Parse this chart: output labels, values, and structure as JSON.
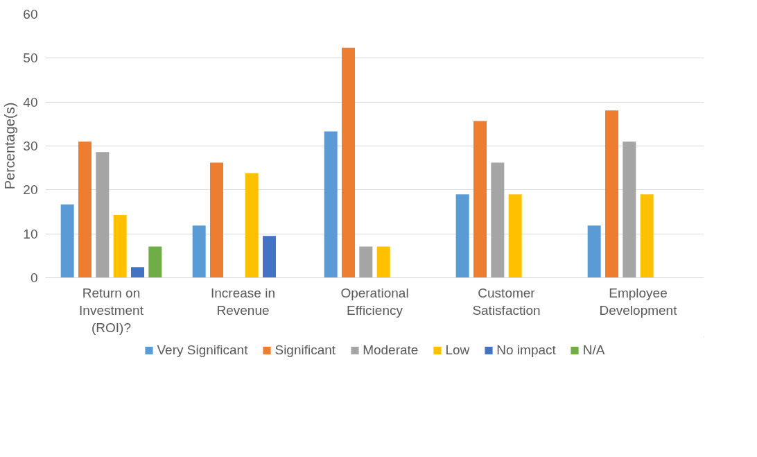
{
  "chart_data": {
    "type": "bar",
    "ylabel": "Percentage(s)",
    "categories": [
      "Return on Investment (ROI)?",
      "Increase in Revenue",
      "Operational Efficiency",
      "Customer Satisfaction",
      "Employee Development"
    ],
    "series": [
      {
        "name": "Very Significant",
        "color": "#5b9bd5",
        "values": [
          16.7,
          11.9,
          33.3,
          19.0,
          11.9
        ]
      },
      {
        "name": "Significant",
        "color": "#ed7d31",
        "values": [
          31.0,
          26.2,
          52.4,
          35.7,
          38.1
        ]
      },
      {
        "name": "Moderate",
        "color": "#a5a5a5",
        "values": [
          28.6,
          null,
          7.1,
          26.2,
          31.0
        ]
      },
      {
        "name": "Low",
        "color": "#ffc000",
        "values": [
          14.3,
          23.8,
          7.1,
          19.0,
          19.0
        ]
      },
      {
        "name": "No impact",
        "color": "#4472c4",
        "values": [
          2.4,
          9.5,
          null,
          null,
          null
        ]
      },
      {
        "name": "N/A",
        "color": "#70ad47",
        "values": [
          7.1,
          null,
          null,
          null,
          null
        ]
      }
    ],
    "ylim": [
      0,
      60
    ],
    "yticks": [
      0,
      10,
      20,
      30,
      40,
      50,
      60
    ],
    "grid": "y",
    "legend": "bottom"
  }
}
